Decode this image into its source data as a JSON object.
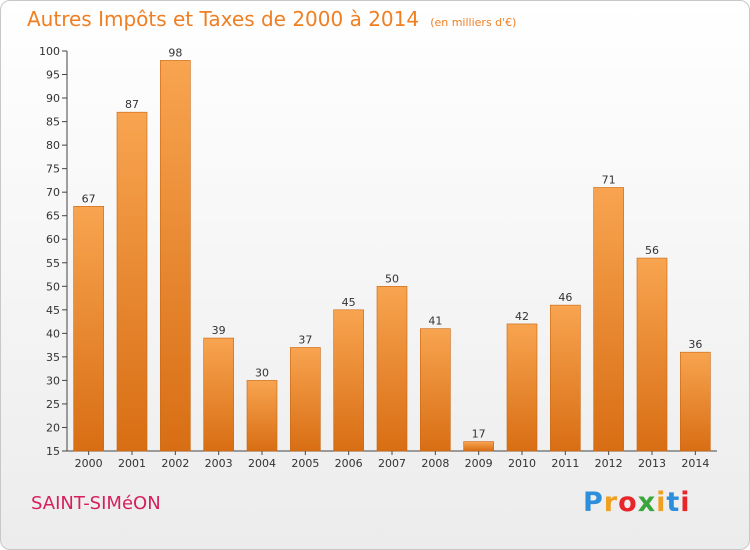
{
  "header": {
    "title": "Autres Impôts et Taxes de 2000 à 2014",
    "unit": "(en milliers d'€)"
  },
  "footer": {
    "city": "SAINT-SIMéON",
    "brand": {
      "letters": [
        "P",
        "r",
        "o",
        "x",
        "i",
        "t",
        "i"
      ],
      "colors": [
        "#2d8fdc",
        "#f0a020",
        "#e8262a",
        "#3aa53a",
        "#f0a020",
        "#2d8fdc",
        "#e8262a"
      ]
    }
  },
  "chart_data": {
    "type": "bar",
    "title": "Autres Impôts et Taxes de 2000 à 2014",
    "subtitle": "(en milliers d'€)",
    "categories": [
      "2000",
      "2001",
      "2002",
      "2003",
      "2004",
      "2005",
      "2006",
      "2007",
      "2008",
      "2009",
      "2010",
      "2011",
      "2012",
      "2013",
      "2014"
    ],
    "values": [
      67,
      87,
      98,
      39,
      30,
      37,
      45,
      50,
      41,
      17,
      42,
      46,
      71,
      56,
      36
    ],
    "ylim": [
      15,
      100
    ],
    "yticks": [
      15,
      20,
      25,
      30,
      35,
      40,
      45,
      50,
      55,
      60,
      65,
      70,
      75,
      80,
      85,
      90,
      95,
      100
    ],
    "grid": false,
    "bar_color": "#f0a050"
  }
}
